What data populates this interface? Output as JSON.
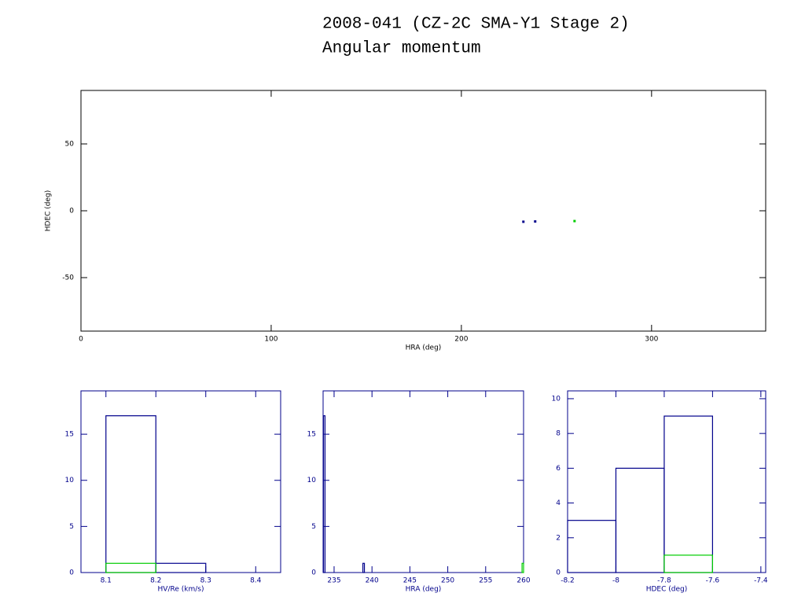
{
  "title": "2008-041 (CZ-2C SMA-Y1 Stage 2)",
  "subtitle": "Angular momentum",
  "chart_data": [
    {
      "type": "scatter",
      "xlabel": "HRA (deg)",
      "ylabel": "HDEC (deg)",
      "axis_color": "#000000",
      "xlim": [
        0,
        360
      ],
      "ylim": [
        -90,
        90
      ],
      "xticks": [
        0,
        100,
        200,
        300
      ],
      "yticks": [
        -50,
        0,
        50
      ],
      "series": [
        {
          "color": "#00008b",
          "x": [
            232.6,
            238.8
          ],
          "values": [
            -8.2,
            -8.0
          ]
        },
        {
          "color": "#00cc00",
          "x": [
            259.5
          ],
          "values": [
            -7.7
          ]
        }
      ]
    },
    {
      "type": "histogram",
      "xlabel": "HV/Re (km/s)",
      "axis_color": "#00008b",
      "xlim": [
        8.05,
        8.45
      ],
      "ylim": [
        0,
        19.7
      ],
      "xticks": [
        8.1,
        8.2,
        8.3,
        8.4
      ],
      "yticks": [
        0,
        5,
        10,
        15
      ],
      "series": [
        {
          "color": "#00008b",
          "bins": [
            8.1,
            8.2,
            8.3
          ],
          "values": [
            17,
            1
          ]
        },
        {
          "color": "#00cc00",
          "bins": [
            8.1,
            8.2,
            8.3
          ],
          "values": [
            1,
            0
          ]
        }
      ]
    },
    {
      "type": "histogram",
      "xlabel": "HRA (deg)",
      "axis_color": "#00008b",
      "xlim": [
        233.55,
        260
      ],
      "ylim": [
        0,
        19.7
      ],
      "xticks": [
        235,
        240,
        245,
        250,
        255,
        260
      ],
      "yticks": [
        0,
        5,
        10,
        15
      ],
      "series": [
        {
          "color": "#00008b",
          "bins": [
            233.6,
            233.8,
            238.8,
            239.0
          ],
          "values": [
            17,
            0,
            1
          ]
        },
        {
          "color": "#00cc00",
          "bins": [
            259.8,
            260.0
          ],
          "values": [
            1
          ]
        }
      ]
    },
    {
      "type": "histogram",
      "xlabel": "HDEC (deg)",
      "axis_color": "#00008b",
      "xlim": [
        -8.2,
        -7.38
      ],
      "ylim": [
        0,
        10.45
      ],
      "xticks": [
        -8.2,
        -8,
        -7.8,
        -7.6,
        -7.4
      ],
      "yticks": [
        0,
        2,
        4,
        6,
        8,
        10
      ],
      "series": [
        {
          "color": "#00008b",
          "bins": [
            -8.2,
            -8.0,
            -7.8,
            -7.6
          ],
          "values": [
            3,
            6,
            9
          ]
        },
        {
          "color": "#00cc00",
          "bins": [
            -7.8,
            -7.6
          ],
          "values": [
            1
          ]
        }
      ]
    }
  ]
}
